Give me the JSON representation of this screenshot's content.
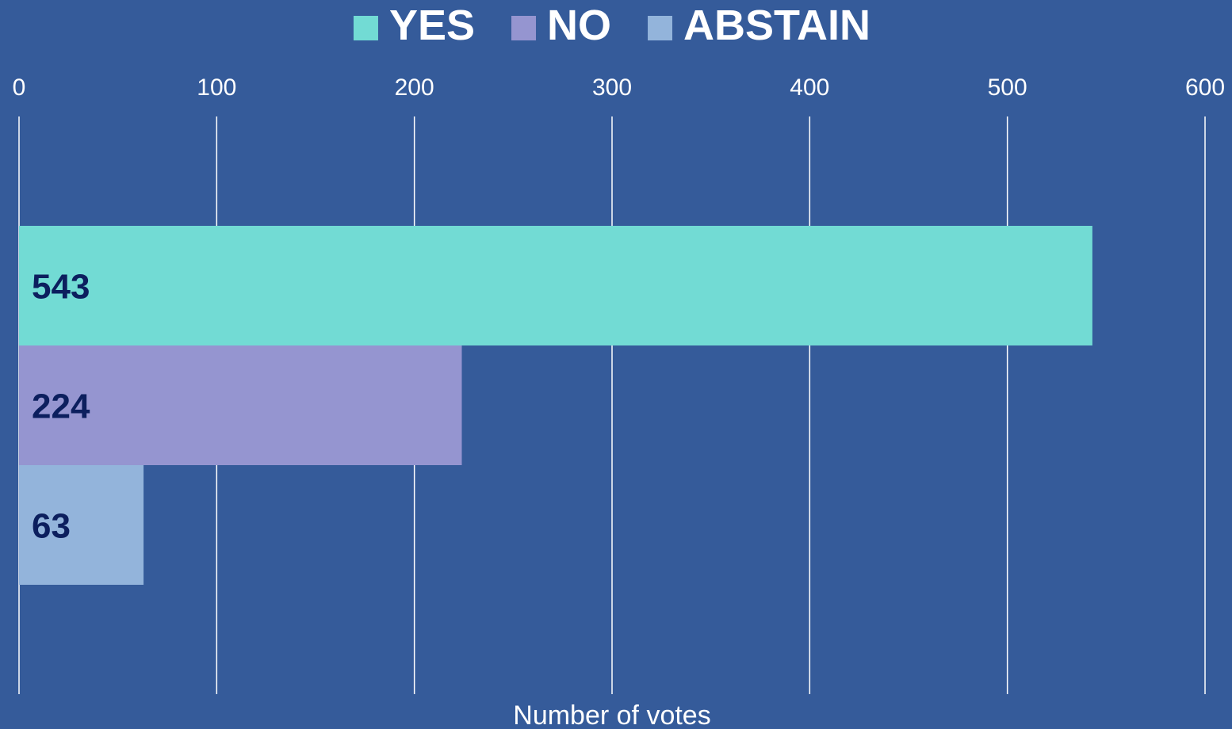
{
  "chart_data": {
    "type": "bar",
    "orientation": "horizontal",
    "xlabel": "Number of votes",
    "xlim": [
      0,
      600
    ],
    "xticks": [
      "0",
      "100",
      "200",
      "300",
      "400",
      "500",
      "600"
    ],
    "grid": true,
    "legend_position": "top-center",
    "series": [
      {
        "name": "YES",
        "value": 543,
        "label": "543",
        "color": "#72dbd4"
      },
      {
        "name": "NO",
        "value": 224,
        "label": "224",
        "color": "#9595d0"
      },
      {
        "name": "ABSTAIN",
        "value": 63,
        "label": "63",
        "color": "#93b4db"
      }
    ]
  }
}
